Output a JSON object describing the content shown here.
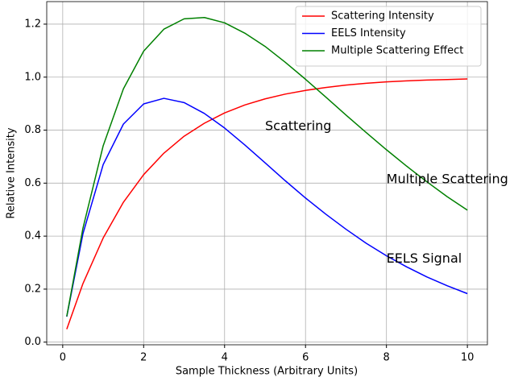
{
  "chart_data": {
    "type": "line",
    "x_label": "Sample Thickness (Arbitrary Units)",
    "y_label": "Relative Intensity",
    "x": [
      0.1,
      0.5,
      1,
      1.5,
      2,
      2.5,
      3,
      3.5,
      4,
      4.5,
      5,
      5.5,
      6,
      6.5,
      7,
      7.5,
      8,
      8.5,
      9,
      9.5,
      10
    ],
    "series": [
      {
        "name": "Scattering Intensity",
        "color": "#ff0000",
        "values": [
          0.049,
          0.221,
          0.393,
          0.528,
          0.632,
          0.713,
          0.777,
          0.826,
          0.865,
          0.895,
          0.918,
          0.936,
          0.95,
          0.961,
          0.97,
          0.977,
          0.982,
          0.986,
          0.989,
          0.991,
          0.993
        ]
      },
      {
        "name": "EELS Intensity",
        "color": "#0000ff",
        "values": [
          0.096,
          0.409,
          0.67,
          0.823,
          0.899,
          0.92,
          0.904,
          0.863,
          0.808,
          0.744,
          0.677,
          0.609,
          0.544,
          0.483,
          0.426,
          0.373,
          0.326,
          0.284,
          0.246,
          0.213,
          0.183
        ]
      },
      {
        "name": "Multiple Scattering Effect",
        "color": "#008000",
        "values": [
          0.097,
          0.43,
          0.741,
          0.956,
          1.098,
          1.181,
          1.22,
          1.225,
          1.205,
          1.166,
          1.116,
          1.056,
          0.992,
          0.925,
          0.857,
          0.791,
          0.726,
          0.664,
          0.605,
          0.549,
          0.498
        ]
      }
    ],
    "annotations": [
      {
        "text": "Scattering",
        "x": 5,
        "y": 0.8,
        "color": "#ff0000"
      },
      {
        "text": "Multiple Scattering",
        "x": 8,
        "y": 0.6,
        "color": "#008000"
      },
      {
        "text": "EELS Signal",
        "x": 8,
        "y": 0.3,
        "color": "#0000ff"
      }
    ],
    "xlim": [
      -0.395,
      10.495
    ],
    "ylim": [
      -0.01,
      1.285
    ],
    "xticks": [
      0,
      2,
      4,
      6,
      8,
      10
    ],
    "yticks": [
      {
        "value": 0,
        "label": "0.0"
      },
      {
        "value": 0.2,
        "label": "0.2"
      },
      {
        "value": 0.4,
        "label": "0.4"
      },
      {
        "value": 0.6,
        "label": "0.6"
      },
      {
        "value": 0.8,
        "label": "0.8"
      },
      {
        "value": 1,
        "label": "1.0"
      },
      {
        "value": 1.2,
        "label": "1.2"
      }
    ],
    "grid": true,
    "legend": "upper right"
  }
}
